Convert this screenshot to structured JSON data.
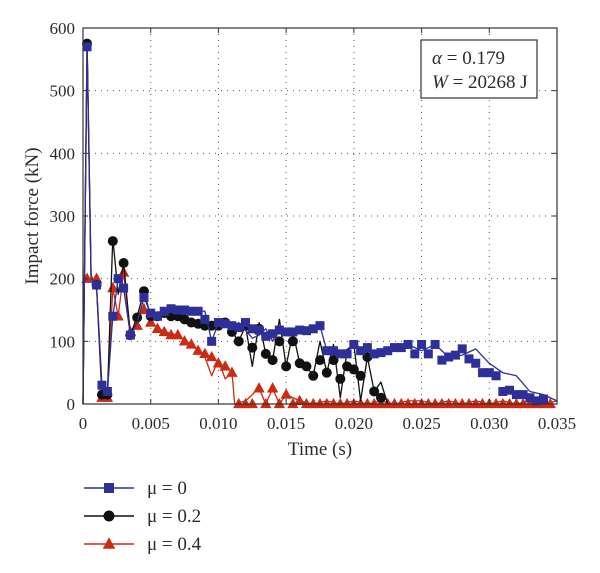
{
  "chart_data": {
    "type": "line",
    "title": "",
    "xlabel": "Time (s)",
    "ylabel": "Impact force (kN)",
    "xlim": [
      0,
      0.035
    ],
    "ylim": [
      0,
      600
    ],
    "x_ticks": [
      "0",
      "0.005",
      "0.010",
      "0.015",
      "0.020",
      "0.025",
      "0.030",
      "0.035"
    ],
    "y_ticks": [
      "0",
      "100",
      "200",
      "300",
      "400",
      "500",
      "600"
    ],
    "grid": true,
    "legend_position": "below-left",
    "annotation": {
      "line1_symbol": "α",
      "line1_value": " = 0.179",
      "line2_symbol": "W",
      "line2_value": " = 20268 J"
    },
    "series": [
      {
        "name": "μ = 0",
        "color": "#2f2f9a",
        "marker": "square",
        "x": [
          0,
          0.0003,
          0.0006,
          0.001,
          0.0014,
          0.0018,
          0.0022,
          0.0026,
          0.003,
          0.0035,
          0.004,
          0.0045,
          0.005,
          0.006,
          0.007,
          0.008,
          0.009,
          0.0095,
          0.01,
          0.0105,
          0.011,
          0.0115,
          0.012,
          0.0125,
          0.013,
          0.0135,
          0.014,
          0.0145,
          0.015,
          0.016,
          0.017,
          0.0175,
          0.018,
          0.019,
          0.02,
          0.021,
          0.022,
          0.023,
          0.024,
          0.025,
          0.026,
          0.027,
          0.028,
          0.029,
          0.03,
          0.031,
          0.032,
          0.033,
          0.034,
          0.035
        ],
        "values": [
          0,
          570,
          200,
          190,
          30,
          20,
          140,
          200,
          185,
          110,
          130,
          170,
          145,
          148,
          152,
          150,
          148,
          100,
          130,
          125,
          120,
          130,
          118,
          105,
          110,
          120,
          100,
          120,
          115,
          118,
          120,
          125,
          85,
          80,
          95,
          85,
          80,
          90,
          95,
          85,
          95,
          75,
          78,
          88,
          65,
          50,
          45,
          20,
          15,
          5
        ],
        "marker_x": [
          0.0003,
          0.001,
          0.0014,
          0.0018,
          0.0022,
          0.0026,
          0.003,
          0.0035,
          0.0045,
          0.005,
          0.0055,
          0.006,
          0.0065,
          0.007,
          0.0075,
          0.008,
          0.0085,
          0.009,
          0.0095,
          0.01,
          0.0105,
          0.011,
          0.0115,
          0.012,
          0.0125,
          0.013,
          0.0135,
          0.014,
          0.0145,
          0.015,
          0.0155,
          0.016,
          0.0165,
          0.017,
          0.0175,
          0.018,
          0.0185,
          0.019,
          0.0195,
          0.02,
          0.0205,
          0.021,
          0.0215,
          0.022,
          0.0225,
          0.023,
          0.0235,
          0.024,
          0.0245,
          0.025,
          0.0255,
          0.026,
          0.0265,
          0.027,
          0.0275,
          0.028,
          0.0285,
          0.029,
          0.0295,
          0.03,
          0.0305,
          0.031,
          0.0315,
          0.032,
          0.0325,
          0.033,
          0.0335,
          0.034
        ],
        "marker_values": [
          570,
          190,
          30,
          20,
          140,
          200,
          185,
          110,
          170,
          145,
          140,
          148,
          152,
          150,
          150,
          148,
          148,
          135,
          100,
          130,
          128,
          125,
          122,
          130,
          120,
          118,
          108,
          112,
          118,
          115,
          115,
          118,
          117,
          120,
          125,
          85,
          85,
          80,
          80,
          95,
          85,
          90,
          80,
          82,
          85,
          90,
          90,
          95,
          80,
          95,
          80,
          95,
          70,
          75,
          78,
          88,
          72,
          65,
          50,
          50,
          45,
          20,
          22,
          15,
          15,
          10,
          5,
          8
        ]
      },
      {
        "name": "μ = 0.2",
        "color": "#111111",
        "marker": "circle",
        "x": [
          0,
          0.0003,
          0.0006,
          0.001,
          0.0014,
          0.0018,
          0.0022,
          0.0026,
          0.003,
          0.0035,
          0.004,
          0.0045,
          0.005,
          0.006,
          0.007,
          0.008,
          0.009,
          0.01,
          0.0105,
          0.011,
          0.0115,
          0.012,
          0.0125,
          0.013,
          0.0135,
          0.014,
          0.0145,
          0.015,
          0.0155,
          0.016,
          0.0165,
          0.017,
          0.0175,
          0.018,
          0.0185,
          0.019,
          0.0195,
          0.02,
          0.0205,
          0.021,
          0.0215,
          0.022,
          0.0225
        ],
        "values": [
          0,
          575,
          200,
          190,
          15,
          15,
          265,
          175,
          225,
          110,
          140,
          180,
          140,
          145,
          140,
          130,
          125,
          125,
          130,
          115,
          100,
          125,
          60,
          130,
          80,
          70,
          135,
          60,
          115,
          65,
          60,
          45,
          100,
          50,
          95,
          10,
          85,
          95,
          5,
          75,
          20,
          35,
          0
        ],
        "marker_x": [
          0.0003,
          0.001,
          0.0014,
          0.0018,
          0.0022,
          0.003,
          0.0035,
          0.004,
          0.0045,
          0.005,
          0.0055,
          0.006,
          0.0065,
          0.007,
          0.0075,
          0.008,
          0.0085,
          0.009,
          0.0095,
          0.01,
          0.0105,
          0.011,
          0.0115,
          0.012,
          0.0125,
          0.013,
          0.0135,
          0.014,
          0.0145,
          0.015,
          0.0155,
          0.016,
          0.0165,
          0.017,
          0.0175,
          0.018,
          0.0185,
          0.019,
          0.0195,
          0.02,
          0.0205,
          0.021,
          0.0215,
          0.022
        ],
        "marker_values": [
          575,
          190,
          15,
          15,
          260,
          225,
          110,
          138,
          180,
          140,
          140,
          145,
          140,
          140,
          135,
          130,
          128,
          125,
          125,
          125,
          130,
          115,
          100,
          125,
          90,
          120,
          80,
          70,
          100,
          60,
          100,
          65,
          60,
          45,
          70,
          50,
          70,
          40,
          60,
          55,
          45,
          75,
          20,
          10
        ]
      },
      {
        "name": "μ = 0.4",
        "color": "#cc2b12",
        "marker": "triangle",
        "x": [
          0,
          0.0003,
          0.0006,
          0.001,
          0.0014,
          0.0018,
          0.0022,
          0.0026,
          0.003,
          0.0035,
          0.004,
          0.0045,
          0.005,
          0.006,
          0.007,
          0.008,
          0.009,
          0.0095,
          0.01,
          0.0105,
          0.011,
          0.0112,
          0.012,
          0.013,
          0.0135,
          0.014,
          0.0145,
          0.015,
          0.016,
          0.017,
          0.018,
          0.019,
          0.02,
          0.021,
          0.022,
          0.023,
          0.024,
          0.025,
          0.026,
          0.027,
          0.028,
          0.029,
          0.03,
          0.031,
          0.032,
          0.033,
          0.034,
          0.035
        ],
        "values": [
          0,
          580,
          205,
          190,
          10,
          10,
          185,
          140,
          210,
          115,
          125,
          160,
          130,
          115,
          110,
          95,
          75,
          45,
          70,
          40,
          50,
          0,
          5,
          25,
          0,
          25,
          0,
          15,
          5,
          0,
          5,
          0,
          5,
          0,
          5,
          0,
          5,
          5,
          0,
          5,
          0,
          5,
          0,
          5,
          0,
          5,
          0,
          5
        ],
        "marker_x": [
          0.0003,
          0.001,
          0.0014,
          0.0018,
          0.0022,
          0.0026,
          0.003,
          0.0035,
          0.004,
          0.0045,
          0.005,
          0.0055,
          0.006,
          0.0065,
          0.007,
          0.0075,
          0.008,
          0.0085,
          0.009,
          0.0095,
          0.01,
          0.0105,
          0.011,
          0.0115,
          0.012,
          0.0125,
          0.013,
          0.0135,
          0.014,
          0.0145,
          0.015,
          0.0155,
          0.016,
          0.0165,
          0.017,
          0.0175,
          0.018,
          0.0185,
          0.019,
          0.0195,
          0.02,
          0.0205,
          0.021,
          0.0215,
          0.022,
          0.0225,
          0.023,
          0.0235,
          0.024,
          0.0245,
          0.025,
          0.0255,
          0.026,
          0.0265,
          0.027,
          0.0275,
          0.028,
          0.0285,
          0.029,
          0.0295,
          0.03,
          0.0305,
          0.031,
          0.0315,
          0.032,
          0.0325,
          0.033,
          0.0335,
          0.034,
          0.0345
        ],
        "marker_values": [
          200,
          200,
          10,
          10,
          185,
          140,
          210,
          115,
          125,
          150,
          130,
          120,
          115,
          110,
          110,
          100,
          95,
          85,
          80,
          75,
          65,
          60,
          50,
          0,
          0,
          0,
          25,
          0,
          25,
          0,
          15,
          0,
          5,
          0,
          0,
          0,
          0,
          0,
          0,
          0,
          0,
          0,
          0,
          0,
          0,
          0,
          0,
          0,
          0,
          0,
          0,
          0,
          0,
          0,
          0,
          0,
          0,
          0,
          0,
          0,
          0,
          0,
          0,
          0,
          0,
          0,
          0,
          0,
          0,
          0
        ]
      }
    ]
  }
}
